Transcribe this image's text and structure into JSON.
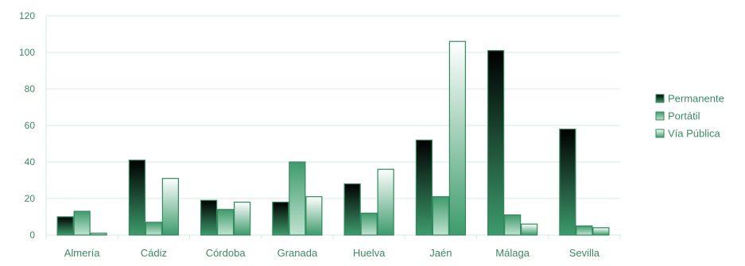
{
  "chart_data": {
    "type": "bar",
    "categories": [
      "Almería",
      "Cádiz",
      "Córdoba",
      "Granada",
      "Huelva",
      "Jaén",
      "Málaga",
      "Sevilla"
    ],
    "series": [
      {
        "name": "Permanente",
        "values": [
          10,
          41,
          19,
          18,
          28,
          52,
          101,
          58
        ]
      },
      {
        "name": "Portátil",
        "values": [
          13,
          7,
          14,
          40,
          12,
          21,
          11,
          5
        ]
      },
      {
        "name": "Vía Pública",
        "values": [
          1,
          31,
          18,
          21,
          36,
          106,
          6,
          4
        ]
      }
    ],
    "ylim": [
      0,
      120
    ],
    "yticks": [
      0,
      20,
      40,
      60,
      80,
      100,
      120
    ],
    "grid": true,
    "legend_position": "right",
    "colors": {
      "permanente_top": "#000000",
      "permanente_bottom": "#3d9b6c",
      "portatil_top": "#3f9a6c",
      "portatil_bottom": "#bfe3cf",
      "via_publica_top": "#ffffff",
      "via_publica_bottom": "#3d9b6c",
      "bar_edge": "#2f8a5c",
      "grid": "#d6ebe0",
      "axis_text": "#3d8a63"
    }
  }
}
